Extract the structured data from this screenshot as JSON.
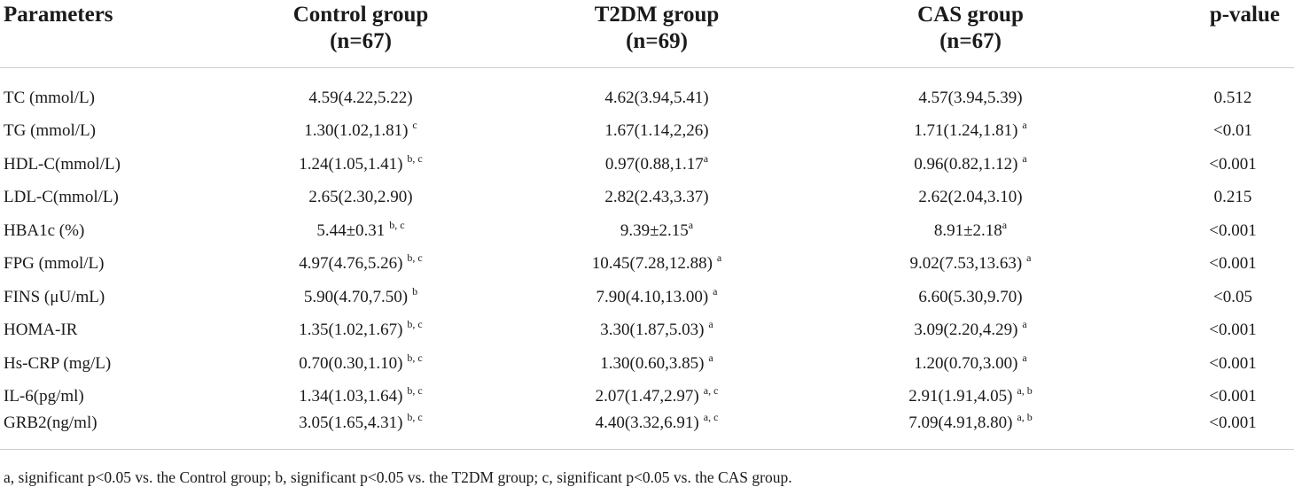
{
  "table": {
    "headers": [
      {
        "line1": "Parameters",
        "line2": ""
      },
      {
        "line1": "Control group",
        "line2": "(n=67)"
      },
      {
        "line1": "T2DM group",
        "line2": "(n=69)"
      },
      {
        "line1": "CAS group",
        "line2": "(n=67)"
      },
      {
        "line1": "p-value",
        "line2": ""
      }
    ],
    "rows": [
      {
        "param": "TC (mmol/L)",
        "control": {
          "v": "4.59(4.22,5.22)",
          "s": ""
        },
        "t2dm": {
          "v": "4.62(3.94,5.41)",
          "s": ""
        },
        "cas": {
          "v": "4.57(3.94,5.39)",
          "s": ""
        },
        "p": "0.512"
      },
      {
        "param": "TG (mmol/L)",
        "control": {
          "v": "1.30(1.02,1.81)",
          "s": "c"
        },
        "t2dm": {
          "v": "1.67(1.14,2,26)",
          "s": ""
        },
        "cas": {
          "v": "1.71(1.24,1.81)",
          "s": "a"
        },
        "p": "<0.01"
      },
      {
        "param": "HDL-C(mmol/L)",
        "control": {
          "v": "1.24(1.05,1.41)",
          "s": "b, c"
        },
        "t2dm": {
          "v": "0.97(0.88,1.17",
          "s": "a",
          "tight": true
        },
        "cas": {
          "v": "0.96(0.82,1.12)",
          "s": "a"
        },
        "p": "<0.001"
      },
      {
        "param": "LDL-C(mmol/L)",
        "control": {
          "v": "2.65(2.30,2.90)",
          "s": ""
        },
        "t2dm": {
          "v": "2.82(2.43,3.37)",
          "s": ""
        },
        "cas": {
          "v": "2.62(2.04,3.10)",
          "s": ""
        },
        "p": "0.215"
      },
      {
        "param": "HBA1c (%)",
        "control": {
          "v": "5.44±0.31",
          "s": "b, c"
        },
        "t2dm": {
          "v": "9.39±2.15",
          "s": "a",
          "tight": true
        },
        "cas": {
          "v": "8.91±2.18",
          "s": "a",
          "tight": true
        },
        "p": "<0.001"
      },
      {
        "param": "FPG (mmol/L)",
        "control": {
          "v": "4.97(4.76,5.26)",
          "s": "b, c"
        },
        "t2dm": {
          "v": "10.45(7.28,12.88)",
          "s": "a"
        },
        "cas": {
          "v": "9.02(7.53,13.63)",
          "s": "a"
        },
        "p": "<0.001"
      },
      {
        "param": "FINS (μU/mL)",
        "control": {
          "v": "5.90(4.70,7.50)",
          "s": "b"
        },
        "t2dm": {
          "v": "7.90(4.10,13.00)",
          "s": "a"
        },
        "cas": {
          "v": "6.60(5.30,9.70)",
          "s": ""
        },
        "p": "<0.05"
      },
      {
        "param": "HOMA-IR",
        "control": {
          "v": "1.35(1.02,1.67)",
          "s": "b, c"
        },
        "t2dm": {
          "v": "3.30(1.87,5.03)",
          "s": "a"
        },
        "cas": {
          "v": "3.09(2.20,4.29)",
          "s": "a"
        },
        "p": "<0.001"
      },
      {
        "param": "Hs-CRP (mg/L)",
        "control": {
          "v": "0.70(0.30,1.10)",
          "s": "b, c"
        },
        "t2dm": {
          "v": "1.30(0.60,3.85)",
          "s": "a"
        },
        "cas": {
          "v": "1.20(0.70,3.00)",
          "s": "a"
        },
        "p": "<0.001"
      },
      {
        "param": "IL-6(pg/ml)",
        "control": {
          "v": "1.34(1.03,1.64)",
          "s": "b, c"
        },
        "t2dm": {
          "v": "2.07(1.47,2.97)",
          "s": "a, c"
        },
        "cas": {
          "v": "2.91(1.91,4.05)",
          "s": "a, b"
        },
        "p": "<0.001"
      },
      {
        "param": "GRB2(ng/ml)",
        "control": {
          "v": "3.05(1.65,4.31)",
          "s": "b, c"
        },
        "t2dm": {
          "v": "4.40(3.32,6.91)",
          "s": "a, c"
        },
        "cas": {
          "v": "7.09(4.91,8.80)",
          "s": "a, b"
        },
        "p": "<0.001"
      }
    ],
    "footnote": "a, significant p<0.05 vs. the Control group; b, significant p<0.05 vs. the T2DM group; c, significant p<0.05 vs. the CAS group."
  }
}
